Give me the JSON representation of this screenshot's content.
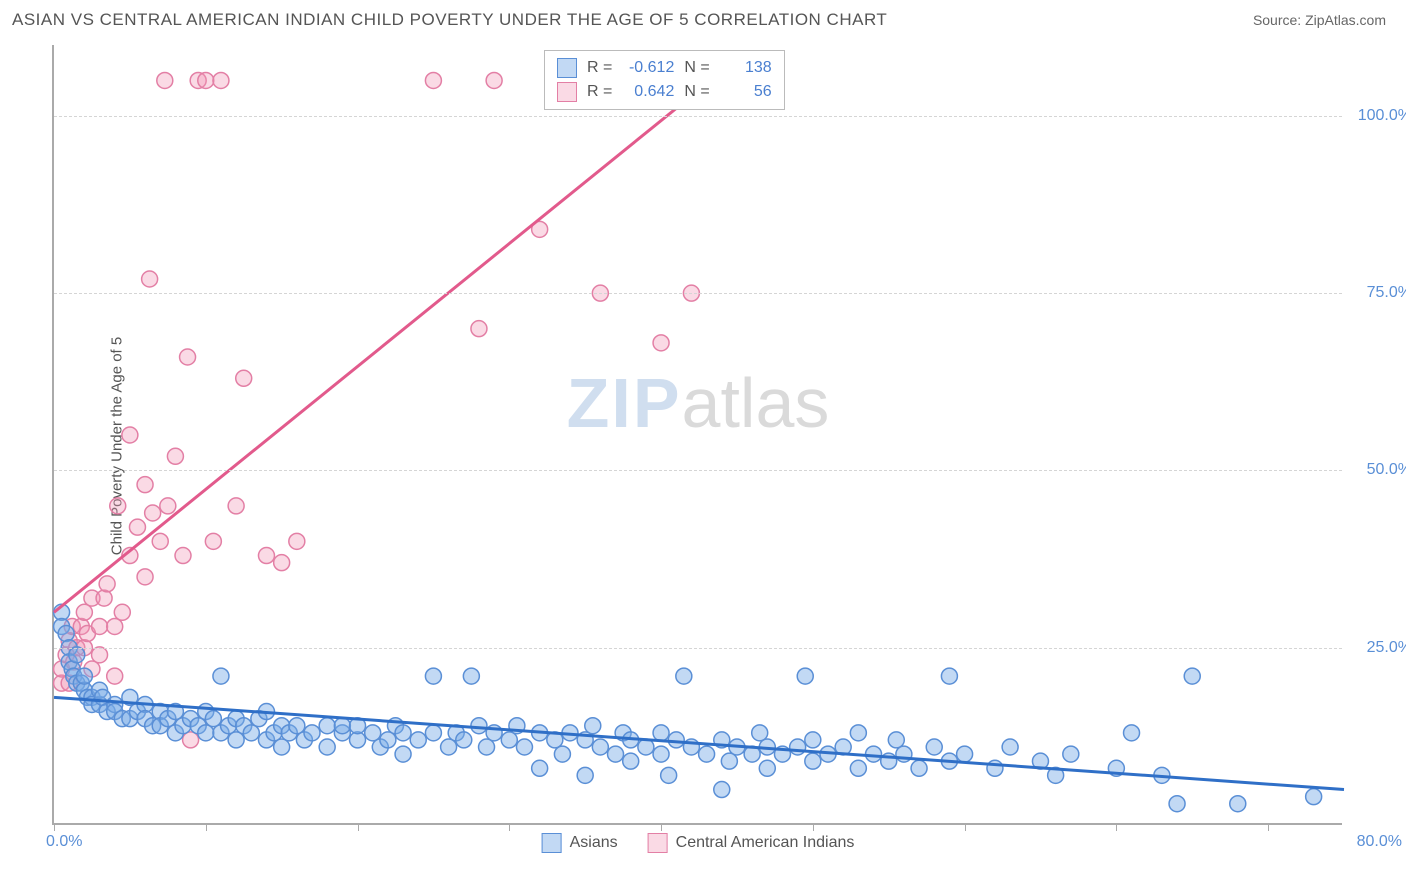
{
  "title": "ASIAN VS CENTRAL AMERICAN INDIAN CHILD POVERTY UNDER THE AGE OF 5 CORRELATION CHART",
  "source": "Source: ZipAtlas.com",
  "y_axis_label": "Child Poverty Under the Age of 5",
  "watermark_zip": "ZIP",
  "watermark_atlas": "atlas",
  "colors": {
    "blue_fill": "rgba(120,170,230,0.45)",
    "blue_stroke": "#5a8fd6",
    "pink_fill": "rgba(240,150,180,0.35)",
    "pink_stroke": "#e37fa5",
    "blue_line": "#2f6fc7",
    "pink_line": "#e25a8c",
    "axis_text": "#5a8fd6"
  },
  "chart": {
    "type": "scatter",
    "xlim": [
      0,
      85
    ],
    "ylim": [
      0,
      110
    ],
    "y_ticks": [
      25,
      50,
      75,
      100
    ],
    "y_tick_labels": [
      "25.0%",
      "50.0%",
      "75.0%",
      "100.0%"
    ],
    "x_ticks": [
      0,
      10,
      20,
      30,
      40,
      50,
      60,
      70,
      80
    ],
    "x_origin_label": "0.0%",
    "x_max_label": "80.0%",
    "marker_radius": 8,
    "line_width": 3
  },
  "legend_top": {
    "rows": [
      {
        "r_label": "R =",
        "r_value": "-0.612",
        "n_label": "N =",
        "n_value": "138"
      },
      {
        "r_label": "R =",
        "r_value": "0.642",
        "n_label": "N =",
        "n_value": "56"
      }
    ]
  },
  "legend_bottom": {
    "items": [
      {
        "label": "Asians"
      },
      {
        "label": "Central American Indians"
      }
    ]
  },
  "series_blue": {
    "regression": {
      "x1": 0,
      "y1": 18,
      "x2": 85,
      "y2": 5
    },
    "points": [
      [
        0.5,
        30
      ],
      [
        0.5,
        28
      ],
      [
        0.8,
        27
      ],
      [
        1,
        25
      ],
      [
        1,
        23
      ],
      [
        1.2,
        22
      ],
      [
        1.3,
        21
      ],
      [
        1.5,
        20
      ],
      [
        1.5,
        24
      ],
      [
        1.8,
        20
      ],
      [
        2,
        19
      ],
      [
        2,
        21
      ],
      [
        2.2,
        18
      ],
      [
        2.5,
        18
      ],
      [
        2.5,
        17
      ],
      [
        3,
        17
      ],
      [
        3,
        19
      ],
      [
        3.2,
        18
      ],
      [
        3.5,
        16
      ],
      [
        4,
        17
      ],
      [
        4,
        16
      ],
      [
        4.5,
        15
      ],
      [
        5,
        18
      ],
      [
        5,
        15
      ],
      [
        5.5,
        16
      ],
      [
        6,
        17
      ],
      [
        6,
        15
      ],
      [
        6.5,
        14
      ],
      [
        7,
        16
      ],
      [
        7,
        14
      ],
      [
        7.5,
        15
      ],
      [
        8,
        16
      ],
      [
        8,
        13
      ],
      [
        8.5,
        14
      ],
      [
        9,
        15
      ],
      [
        9.5,
        14
      ],
      [
        10,
        16
      ],
      [
        10,
        13
      ],
      [
        10.5,
        15
      ],
      [
        11,
        13
      ],
      [
        11,
        21
      ],
      [
        11.5,
        14
      ],
      [
        12,
        15
      ],
      [
        12,
        12
      ],
      [
        12.5,
        14
      ],
      [
        13,
        13
      ],
      [
        13.5,
        15
      ],
      [
        14,
        12
      ],
      [
        14,
        16
      ],
      [
        14.5,
        13
      ],
      [
        15,
        14
      ],
      [
        15,
        11
      ],
      [
        15.5,
        13
      ],
      [
        16,
        14
      ],
      [
        16.5,
        12
      ],
      [
        17,
        13
      ],
      [
        18,
        14
      ],
      [
        18,
        11
      ],
      [
        19,
        13
      ],
      [
        19,
        14
      ],
      [
        20,
        12
      ],
      [
        20,
        14
      ],
      [
        21,
        13
      ],
      [
        21.5,
        11
      ],
      [
        22,
        12
      ],
      [
        22.5,
        14
      ],
      [
        23,
        13
      ],
      [
        23,
        10
      ],
      [
        24,
        12
      ],
      [
        25,
        13
      ],
      [
        25,
        21
      ],
      [
        26,
        11
      ],
      [
        26.5,
        13
      ],
      [
        27,
        12
      ],
      [
        27.5,
        21
      ],
      [
        28,
        14
      ],
      [
        28.5,
        11
      ],
      [
        29,
        13
      ],
      [
        30,
        12
      ],
      [
        30.5,
        14
      ],
      [
        31,
        11
      ],
      [
        32,
        13
      ],
      [
        32,
        8
      ],
      [
        33,
        12
      ],
      [
        33.5,
        10
      ],
      [
        34,
        13
      ],
      [
        35,
        12
      ],
      [
        35,
        7
      ],
      [
        35.5,
        14
      ],
      [
        36,
        11
      ],
      [
        37,
        10
      ],
      [
        37.5,
        13
      ],
      [
        38,
        12
      ],
      [
        38,
        9
      ],
      [
        39,
        11
      ],
      [
        40,
        10
      ],
      [
        40,
        13
      ],
      [
        40.5,
        7
      ],
      [
        41,
        12
      ],
      [
        41.5,
        21
      ],
      [
        42,
        11
      ],
      [
        43,
        10
      ],
      [
        44,
        12
      ],
      [
        44,
        5
      ],
      [
        44.5,
        9
      ],
      [
        45,
        11
      ],
      [
        46,
        10
      ],
      [
        46.5,
        13
      ],
      [
        47,
        8
      ],
      [
        47,
        11
      ],
      [
        48,
        10
      ],
      [
        49,
        11
      ],
      [
        49.5,
        21
      ],
      [
        50,
        9
      ],
      [
        50,
        12
      ],
      [
        51,
        10
      ],
      [
        52,
        11
      ],
      [
        53,
        8
      ],
      [
        53,
        13
      ],
      [
        54,
        10
      ],
      [
        55,
        9
      ],
      [
        55.5,
        12
      ],
      [
        56,
        10
      ],
      [
        57,
        8
      ],
      [
        58,
        11
      ],
      [
        59,
        21
      ],
      [
        59,
        9
      ],
      [
        60,
        10
      ],
      [
        62,
        8
      ],
      [
        63,
        11
      ],
      [
        65,
        9
      ],
      [
        66,
        7
      ],
      [
        67,
        10
      ],
      [
        70,
        8
      ],
      [
        71,
        13
      ],
      [
        73,
        7
      ],
      [
        74,
        3
      ],
      [
        75,
        21
      ],
      [
        78,
        3
      ],
      [
        83,
        4
      ]
    ]
  },
  "series_pink": {
    "regression": {
      "x1": 0,
      "y1": 30,
      "x2": 45,
      "y2": 108
    },
    "points": [
      [
        0.5,
        20
      ],
      [
        0.5,
        22
      ],
      [
        0.8,
        24
      ],
      [
        1,
        20
      ],
      [
        1,
        26
      ],
      [
        1.2,
        28
      ],
      [
        1.3,
        23
      ],
      [
        1.5,
        25
      ],
      [
        1.8,
        28
      ],
      [
        2,
        25
      ],
      [
        2,
        30
      ],
      [
        2.2,
        27
      ],
      [
        2.5,
        22
      ],
      [
        2.5,
        32
      ],
      [
        3,
        28
      ],
      [
        3,
        24
      ],
      [
        3.3,
        32
      ],
      [
        3.5,
        34
      ],
      [
        4,
        28
      ],
      [
        4,
        21
      ],
      [
        4.2,
        45
      ],
      [
        4.5,
        30
      ],
      [
        5,
        38
      ],
      [
        5,
        55
      ],
      [
        5.5,
        42
      ],
      [
        6,
        35
      ],
      [
        6,
        48
      ],
      [
        6.3,
        77
      ],
      [
        6.5,
        44
      ],
      [
        7,
        40
      ],
      [
        7.3,
        105
      ],
      [
        7.5,
        45
      ],
      [
        8,
        52
      ],
      [
        8.5,
        38
      ],
      [
        8.8,
        66
      ],
      [
        9,
        12
      ],
      [
        9.5,
        105
      ],
      [
        10,
        105
      ],
      [
        10.5,
        40
      ],
      [
        11,
        105
      ],
      [
        12,
        45
      ],
      [
        12.5,
        63
      ],
      [
        14,
        38
      ],
      [
        15,
        37
      ],
      [
        16,
        40
      ],
      [
        25,
        105
      ],
      [
        28,
        70
      ],
      [
        29,
        105
      ],
      [
        32,
        84
      ],
      [
        33,
        105
      ],
      [
        36,
        75
      ],
      [
        40,
        68
      ],
      [
        40.5,
        105
      ],
      [
        42,
        75
      ],
      [
        42.5,
        105
      ],
      [
        43,
        105
      ]
    ]
  }
}
